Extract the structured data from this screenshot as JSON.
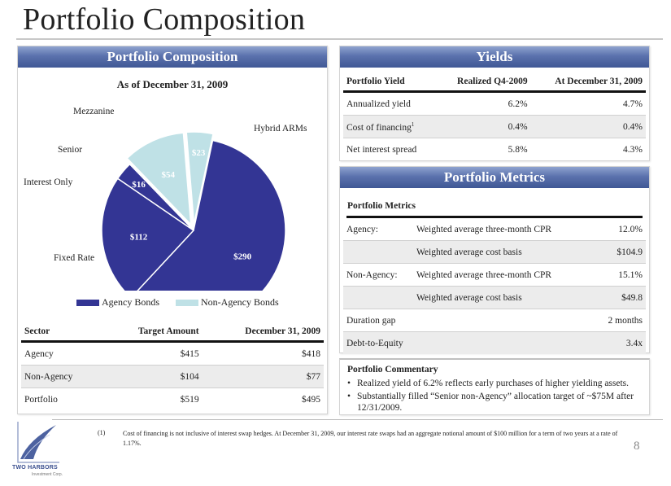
{
  "page": {
    "title": "Portfolio Composition",
    "page_number": "8",
    "footnote_marker": "(1)",
    "footnote": "Cost of financing is not inclusive of interest swap hedges.  At December 31, 2009, our interest rate swaps had an aggregate notional amount of $100 million for a term of two years at a rate of 1.17%.",
    "logo_name": "TWO HARBORS",
    "logo_sub": "Investment Corp."
  },
  "composition": {
    "header": "Portfolio Composition",
    "as_of": "As of December 31, 2009",
    "chart_data": {
      "type": "pie",
      "title": "As of December 31, 2009",
      "slices": [
        {
          "label": "Hybrid ARMs",
          "value": 290,
          "value_label": "$290",
          "group": "Agency Bonds"
        },
        {
          "label": "Fixed Rate",
          "value": 112,
          "value_label": "$112",
          "group": "Agency Bonds"
        },
        {
          "label": "Interest Only",
          "value": 16,
          "value_label": "$16",
          "group": "Agency Bonds"
        },
        {
          "label": "Senior",
          "value": 54,
          "value_label": "$54",
          "group": "Non-Agency Bonds"
        },
        {
          "label": "Mezzanine",
          "value": 23,
          "value_label": "$23",
          "group": "Non-Agency Bonds"
        }
      ],
      "legend": [
        {
          "name": "Agency Bonds",
          "color": "#333594"
        },
        {
          "name": "Non-Agency Bonds",
          "color": "#bfe1e6"
        }
      ],
      "legend_position": "bottom"
    },
    "table": {
      "headers": [
        "Sector",
        "Target Amount",
        "December 31, 2009"
      ],
      "rows": [
        [
          "Agency",
          "$415",
          "$418"
        ],
        [
          "Non-Agency",
          "$104",
          "$77"
        ],
        [
          "Portfolio",
          "$519",
          "$495"
        ]
      ]
    }
  },
  "yields": {
    "header": "Yields",
    "headers": [
      "Portfolio Yield",
      "Realized Q4-2009",
      "At December 31, 2009"
    ],
    "rows": [
      {
        "label": "Annualized yield",
        "sup": "",
        "q4": "6.2%",
        "dec": "4.7%"
      },
      {
        "label": "Cost of financing",
        "sup": "1",
        "q4": "0.4%",
        "dec": "0.4%"
      },
      {
        "label": "Net interest spread",
        "sup": "",
        "q4": "5.8%",
        "dec": "4.3%"
      }
    ]
  },
  "metrics": {
    "header": "Portfolio Metrics",
    "subheader": "Portfolio Metrics",
    "rows": [
      [
        "Agency:",
        "Weighted average three-month CPR",
        "12.0%"
      ],
      [
        "",
        "Weighted average cost basis",
        "$104.9"
      ],
      [
        "Non-Agency:",
        "Weighted average three-month CPR",
        "15.1%"
      ],
      [
        "",
        "Weighted average cost basis",
        "$49.8"
      ],
      [
        "Duration gap",
        "",
        "2 months"
      ],
      [
        "Debt-to-Equity",
        "",
        "3.4x"
      ]
    ]
  },
  "commentary": {
    "title": "Portfolio Commentary",
    "bullets": [
      "Realized yield of 6.2% reflects early purchases of higher yielding assets.",
      "Substantially filled “Senior non-Agency” allocation target of ~$75M after 12/31/2009."
    ]
  }
}
